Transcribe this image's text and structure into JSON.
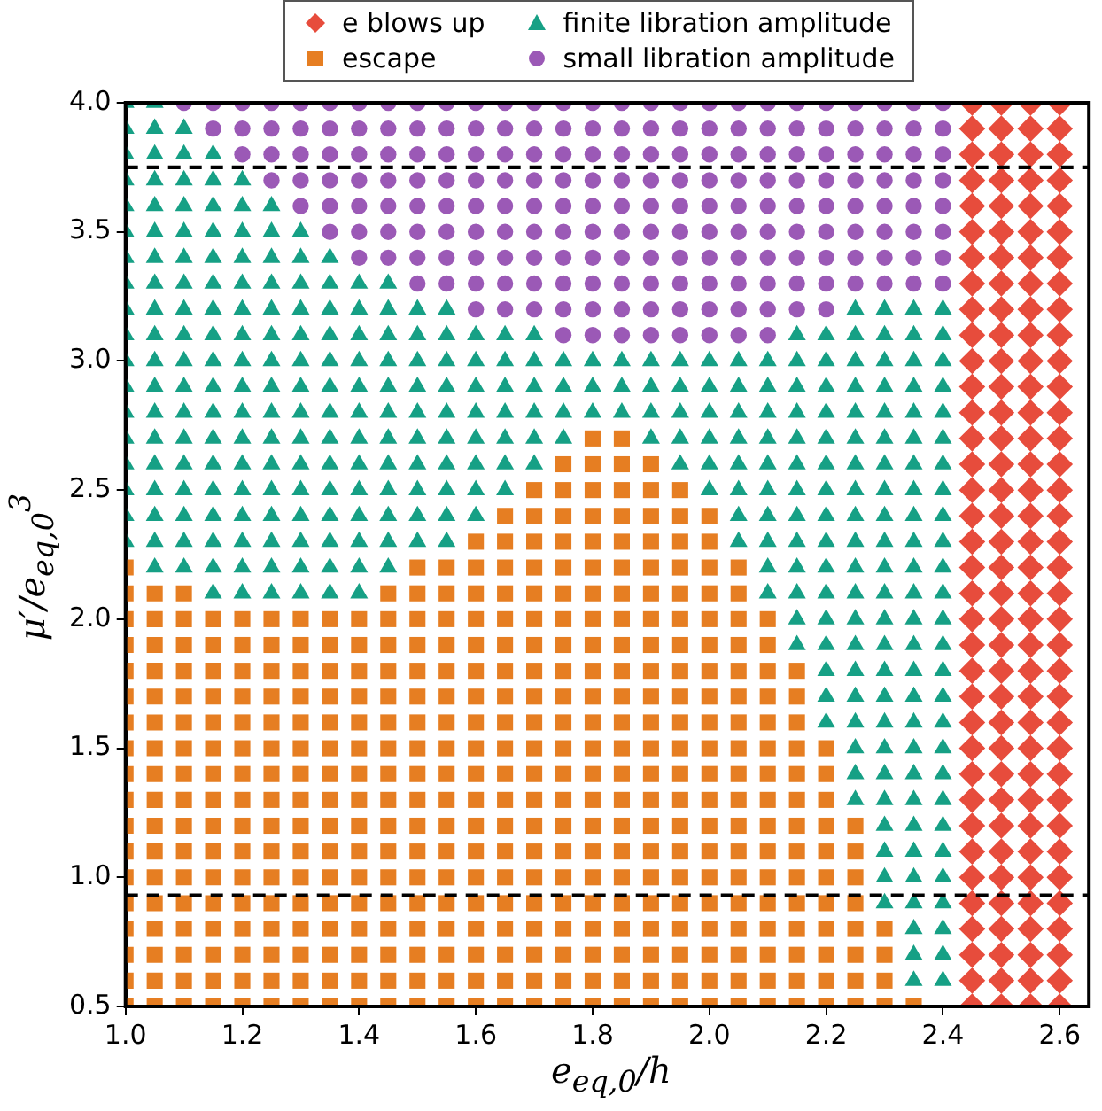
{
  "chart_data": {
    "type": "scatter",
    "xlabel": "e$_{eq,0}$/h",
    "ylabel": "μ′/e$_{eq,0}$$^{3}$",
    "xlim": [
      1.0,
      2.65
    ],
    "ylim": [
      0.5,
      4.0
    ],
    "xticks": [
      {
        "value": 1.0,
        "label": "1.0"
      },
      {
        "value": 1.2,
        "label": "1.2"
      },
      {
        "value": 1.4,
        "label": "1.4"
      },
      {
        "value": 1.6,
        "label": "1.6"
      },
      {
        "value": 1.8,
        "label": "1.8"
      },
      {
        "value": 2.0,
        "label": "2.0"
      },
      {
        "value": 2.2,
        "label": "2.2"
      },
      {
        "value": 2.4,
        "label": "2.4"
      },
      {
        "value": 2.6,
        "label": "2.6"
      }
    ],
    "yticks": [
      {
        "value": 0.5,
        "label": "0.5"
      },
      {
        "value": 1.0,
        "label": "1.0"
      },
      {
        "value": 1.5,
        "label": "1.5"
      },
      {
        "value": 2.0,
        "label": "2.0"
      },
      {
        "value": 2.5,
        "label": "2.5"
      },
      {
        "value": 3.0,
        "label": "3.0"
      },
      {
        "value": 3.5,
        "label": "3.5"
      },
      {
        "value": 4.0,
        "label": "4.0"
      }
    ],
    "grid": false,
    "legend": "top",
    "ref_lines": [
      {
        "axis": "y",
        "value": 3.75,
        "color": "#000000",
        "line_style": "dashed"
      },
      {
        "axis": "y",
        "value": 0.93,
        "color": "#000000",
        "line_style": "dashed"
      }
    ],
    "series": [
      {
        "name": "e blows up",
        "color": "#e74c3c",
        "marker": "diamond",
        "x": [
          2.45,
          2.5,
          2.55,
          2.6,
          2.45,
          2.5,
          2.55,
          2.6,
          2.45,
          2.5,
          2.55,
          2.6,
          2.45,
          2.5,
          2.55,
          2.6,
          2.45,
          2.5,
          2.55,
          2.6,
          2.45,
          2.5,
          2.55,
          2.6,
          2.45,
          2.5,
          2.55,
          2.6,
          2.45,
          2.5,
          2.55,
          2.6,
          2.45,
          2.5,
          2.55,
          2.6,
          2.45,
          2.5,
          2.55,
          2.6,
          2.45,
          2.5,
          2.55,
          2.6,
          2.45,
          2.5,
          2.55,
          2.6,
          2.45,
          2.5,
          2.55,
          2.6,
          2.45,
          2.5,
          2.55,
          2.6,
          2.45,
          2.5,
          2.55,
          2.6,
          2.45,
          2.5,
          2.55,
          2.6,
          2.45,
          2.5,
          2.55,
          2.6,
          2.45,
          2.5,
          2.55,
          2.6,
          2.45,
          2.5,
          2.55,
          2.6,
          2.45,
          2.5,
          2.55,
          2.6,
          2.45,
          2.5,
          2.55,
          2.6,
          2.45,
          2.5,
          2.55,
          2.6,
          2.45,
          2.5,
          2.55,
          2.6,
          2.45,
          2.5,
          2.55,
          2.6,
          2.45,
          2.5,
          2.55,
          2.6,
          2.45,
          2.5,
          2.55,
          2.6,
          2.45,
          2.5,
          2.55,
          2.6,
          2.45,
          2.5,
          2.55,
          2.6,
          2.45,
          2.5,
          2.55,
          2.6,
          2.45,
          2.5,
          2.55,
          2.6,
          2.45,
          2.5,
          2.55,
          2.6,
          2.45,
          2.5,
          2.55,
          2.6,
          2.45,
          2.5,
          2.55,
          2.6,
          2.45,
          2.5,
          2.55,
          2.6,
          2.45,
          2.5,
          2.55,
          2.6,
          2.45,
          2.5,
          2.55,
          2.6
        ],
        "values": [
          0.5,
          0.5,
          0.5,
          0.5,
          0.6,
          0.6,
          0.6,
          0.6,
          0.7,
          0.7,
          0.7,
          0.7,
          0.8,
          0.8,
          0.8,
          0.8,
          0.9,
          0.9,
          0.9,
          0.9,
          1,
          1,
          1,
          1,
          1.1,
          1.1,
          1.1,
          1.1,
          1.2,
          1.2,
          1.2,
          1.2,
          1.3,
          1.3,
          1.3,
          1.3,
          1.4,
          1.4,
          1.4,
          1.4,
          1.5,
          1.5,
          1.5,
          1.5,
          1.6,
          1.6,
          1.6,
          1.6,
          1.7,
          1.7,
          1.7,
          1.7,
          1.8,
          1.8,
          1.8,
          1.8,
          1.9,
          1.9,
          1.9,
          1.9,
          2,
          2,
          2,
          2,
          2.1,
          2.1,
          2.1,
          2.1,
          2.2,
          2.2,
          2.2,
          2.2,
          2.3,
          2.3,
          2.3,
          2.3,
          2.4,
          2.4,
          2.4,
          2.4,
          2.5,
          2.5,
          2.5,
          2.5,
          2.6,
          2.6,
          2.6,
          2.6,
          2.7,
          2.7,
          2.7,
          2.7,
          2.8,
          2.8,
          2.8,
          2.8,
          2.9,
          2.9,
          2.9,
          2.9,
          3,
          3,
          3,
          3,
          3.1,
          3.1,
          3.1,
          3.1,
          3.2,
          3.2,
          3.2,
          3.2,
          3.3,
          3.3,
          3.3,
          3.3,
          3.4,
          3.4,
          3.4,
          3.4,
          3.5,
          3.5,
          3.5,
          3.5,
          3.6,
          3.6,
          3.6,
          3.6,
          3.7,
          3.7,
          3.7,
          3.7,
          3.8,
          3.8,
          3.8,
          3.8,
          3.9,
          3.9,
          3.9,
          3.9,
          4,
          4,
          4,
          4
        ]
      },
      {
        "name": "escape",
        "color": "#e67e22",
        "marker": "square",
        "x": [
          1,
          1.05,
          1.1,
          1.15,
          1.2,
          1.25,
          1.3,
          1.35,
          1.4,
          1.45,
          1.5,
          1.55,
          1.6,
          1.65,
          1.7,
          1.75,
          1.8,
          1.85,
          1.9,
          1.95,
          2,
          2.05,
          2.1,
          2.15,
          2.2,
          2.25,
          2.3,
          2.35,
          1,
          1.05,
          1.1,
          1.15,
          1.2,
          1.25,
          1.3,
          1.35,
          1.4,
          1.45,
          1.5,
          1.55,
          1.6,
          1.65,
          1.7,
          1.75,
          1.8,
          1.85,
          1.9,
          1.95,
          2,
          2.05,
          2.1,
          2.15,
          2.2,
          2.25,
          2.3,
          1,
          1.05,
          1.1,
          1.15,
          1.2,
          1.25,
          1.3,
          1.35,
          1.4,
          1.45,
          1.5,
          1.55,
          1.6,
          1.65,
          1.7,
          1.75,
          1.8,
          1.85,
          1.9,
          1.95,
          2,
          2.05,
          2.1,
          2.15,
          2.2,
          2.25,
          2.3,
          1,
          1.05,
          1.1,
          1.15,
          1.2,
          1.25,
          1.3,
          1.35,
          1.4,
          1.45,
          1.5,
          1.55,
          1.6,
          1.65,
          1.7,
          1.75,
          1.8,
          1.85,
          1.9,
          1.95,
          2,
          2.05,
          2.1,
          2.15,
          2.2,
          2.25,
          2.3,
          1,
          1.05,
          1.1,
          1.15,
          1.2,
          1.25,
          1.3,
          1.35,
          1.4,
          1.45,
          1.5,
          1.55,
          1.6,
          1.65,
          1.7,
          1.75,
          1.8,
          1.85,
          1.9,
          1.95,
          2,
          2.05,
          2.1,
          2.15,
          2.2,
          2.25,
          1,
          1.05,
          1.1,
          1.15,
          1.2,
          1.25,
          1.3,
          1.35,
          1.4,
          1.45,
          1.5,
          1.55,
          1.6,
          1.65,
          1.7,
          1.75,
          1.8,
          1.85,
          1.9,
          1.95,
          2,
          2.05,
          2.1,
          2.15,
          2.2,
          2.25,
          1,
          1.05,
          1.1,
          1.15,
          1.2,
          1.25,
          1.3,
          1.35,
          1.4,
          1.45,
          1.5,
          1.55,
          1.6,
          1.65,
          1.7,
          1.75,
          1.8,
          1.85,
          1.9,
          1.95,
          2,
          2.05,
          2.1,
          2.15,
          2.2,
          2.25,
          1,
          1.05,
          1.1,
          1.15,
          1.2,
          1.25,
          1.3,
          1.35,
          1.4,
          1.45,
          1.5,
          1.55,
          1.6,
          1.65,
          1.7,
          1.75,
          1.8,
          1.85,
          1.9,
          1.95,
          2,
          2.05,
          2.1,
          2.15,
          2.2,
          2.25,
          1,
          1.05,
          1.1,
          1.15,
          1.2,
          1.25,
          1.3,
          1.35,
          1.4,
          1.45,
          1.5,
          1.55,
          1.6,
          1.65,
          1.7,
          1.75,
          1.8,
          1.85,
          1.9,
          1.95,
          2,
          2.05,
          2.1,
          2.15,
          2.2,
          1,
          1.05,
          1.1,
          1.15,
          1.2,
          1.25,
          1.3,
          1.35,
          1.4,
          1.45,
          1.5,
          1.55,
          1.6,
          1.65,
          1.7,
          1.75,
          1.8,
          1.85,
          1.9,
          1.95,
          2,
          2.05,
          2.1,
          2.15,
          2.2,
          1,
          1.05,
          1.1,
          1.15,
          1.2,
          1.25,
          1.3,
          1.35,
          1.4,
          1.45,
          1.5,
          1.55,
          1.6,
          1.65,
          1.7,
          1.75,
          1.8,
          1.85,
          1.9,
          1.95,
          2,
          2.05,
          2.1,
          2.15,
          2.2,
          1,
          1.05,
          1.1,
          1.15,
          1.2,
          1.25,
          1.3,
          1.35,
          1.4,
          1.45,
          1.5,
          1.55,
          1.6,
          1.65,
          1.7,
          1.75,
          1.8,
          1.85,
          1.9,
          1.95,
          2,
          2.05,
          2.1,
          2.15,
          1,
          1.05,
          1.1,
          1.15,
          1.2,
          1.25,
          1.3,
          1.35,
          1.4,
          1.45,
          1.5,
          1.55,
          1.6,
          1.65,
          1.7,
          1.75,
          1.8,
          1.85,
          1.9,
          1.95,
          2,
          2.05,
          2.1,
          2.15,
          1,
          1.05,
          1.1,
          1.15,
          1.2,
          1.25,
          1.3,
          1.35,
          1.4,
          1.45,
          1.5,
          1.55,
          1.6,
          1.65,
          1.7,
          1.75,
          1.8,
          1.85,
          1.9,
          1.95,
          2,
          2.05,
          2.1,
          2.15,
          1,
          1.05,
          1.1,
          1.15,
          1.2,
          1.25,
          1.3,
          1.35,
          1.4,
          1.45,
          1.5,
          1.55,
          1.6,
          1.65,
          1.7,
          1.75,
          1.8,
          1.85,
          1.9,
          1.95,
          2,
          2.05,
          2.1,
          1,
          1.05,
          1.1,
          1.15,
          1.2,
          1.25,
          1.3,
          1.35,
          1.4,
          1.45,
          1.5,
          1.55,
          1.6,
          1.65,
          1.7,
          1.75,
          1.8,
          1.85,
          1.9,
          1.95,
          2,
          2.05,
          2.1,
          1,
          1.05,
          1.1,
          1.45,
          1.5,
          1.55,
          1.6,
          1.65,
          1.7,
          1.75,
          1.8,
          1.85,
          1.9,
          1.95,
          2,
          2.05,
          1,
          1.5,
          1.55,
          1.6,
          1.65,
          1.7,
          1.75,
          1.8,
          1.85,
          1.9,
          1.95,
          2,
          2.05,
          1.6,
          1.65,
          1.7,
          1.75,
          1.8,
          1.85,
          1.9,
          1.95,
          2,
          1.65,
          1.7,
          1.75,
          1.8,
          1.85,
          1.9,
          1.95,
          2,
          1.7,
          1.75,
          1.8,
          1.85,
          1.9,
          1.95,
          1.75,
          1.8,
          1.85,
          1.9,
          1.8,
          1.85
        ],
        "values": [
          0.5,
          0.5,
          0.5,
          0.5,
          0.5,
          0.5,
          0.5,
          0.5,
          0.5,
          0.5,
          0.5,
          0.5,
          0.5,
          0.5,
          0.5,
          0.5,
          0.5,
          0.5,
          0.5,
          0.5,
          0.5,
          0.5,
          0.5,
          0.5,
          0.5,
          0.5,
          0.5,
          0.5,
          0.6,
          0.6,
          0.6,
          0.6,
          0.6,
          0.6,
          0.6,
          0.6,
          0.6,
          0.6,
          0.6,
          0.6,
          0.6,
          0.6,
          0.6,
          0.6,
          0.6,
          0.6,
          0.6,
          0.6,
          0.6,
          0.6,
          0.6,
          0.6,
          0.6,
          0.6,
          0.6,
          0.7,
          0.7,
          0.7,
          0.7,
          0.7,
          0.7,
          0.7,
          0.7,
          0.7,
          0.7,
          0.7,
          0.7,
          0.7,
          0.7,
          0.7,
          0.7,
          0.7,
          0.7,
          0.7,
          0.7,
          0.7,
          0.7,
          0.7,
          0.7,
          0.7,
          0.7,
          0.7,
          0.8,
          0.8,
          0.8,
          0.8,
          0.8,
          0.8,
          0.8,
          0.8,
          0.8,
          0.8,
          0.8,
          0.8,
          0.8,
          0.8,
          0.8,
          0.8,
          0.8,
          0.8,
          0.8,
          0.8,
          0.8,
          0.8,
          0.8,
          0.8,
          0.8,
          0.8,
          0.8,
          0.9,
          0.9,
          0.9,
          0.9,
          0.9,
          0.9,
          0.9,
          0.9,
          0.9,
          0.9,
          0.9,
          0.9,
          0.9,
          0.9,
          0.9,
          0.9,
          0.9,
          0.9,
          0.9,
          0.9,
          0.9,
          0.9,
          0.9,
          0.9,
          0.9,
          0.9,
          1,
          1,
          1,
          1,
          1,
          1,
          1,
          1,
          1,
          1,
          1,
          1,
          1,
          1,
          1,
          1,
          1,
          1,
          1,
          1,
          1,
          1,
          1,
          1,
          1,
          1,
          1.1,
          1.1,
          1.1,
          1.1,
          1.1,
          1.1,
          1.1,
          1.1,
          1.1,
          1.1,
          1.1,
          1.1,
          1.1,
          1.1,
          1.1,
          1.1,
          1.1,
          1.1,
          1.1,
          1.1,
          1.1,
          1.1,
          1.1,
          1.1,
          1.1,
          1.1,
          1.2,
          1.2,
          1.2,
          1.2,
          1.2,
          1.2,
          1.2,
          1.2,
          1.2,
          1.2,
          1.2,
          1.2,
          1.2,
          1.2,
          1.2,
          1.2,
          1.2,
          1.2,
          1.2,
          1.2,
          1.2,
          1.2,
          1.2,
          1.2,
          1.2,
          1.2,
          1.3,
          1.3,
          1.3,
          1.3,
          1.3,
          1.3,
          1.3,
          1.3,
          1.3,
          1.3,
          1.3,
          1.3,
          1.3,
          1.3,
          1.3,
          1.3,
          1.3,
          1.3,
          1.3,
          1.3,
          1.3,
          1.3,
          1.3,
          1.3,
          1.3,
          1.4,
          1.4,
          1.4,
          1.4,
          1.4,
          1.4,
          1.4,
          1.4,
          1.4,
          1.4,
          1.4,
          1.4,
          1.4,
          1.4,
          1.4,
          1.4,
          1.4,
          1.4,
          1.4,
          1.4,
          1.4,
          1.4,
          1.4,
          1.4,
          1.4,
          1.5,
          1.5,
          1.5,
          1.5,
          1.5,
          1.5,
          1.5,
          1.5,
          1.5,
          1.5,
          1.5,
          1.5,
          1.5,
          1.5,
          1.5,
          1.5,
          1.5,
          1.5,
          1.5,
          1.5,
          1.5,
          1.5,
          1.5,
          1.5,
          1.5,
          1.6,
          1.6,
          1.6,
          1.6,
          1.6,
          1.6,
          1.6,
          1.6,
          1.6,
          1.6,
          1.6,
          1.6,
          1.6,
          1.6,
          1.6,
          1.6,
          1.6,
          1.6,
          1.6,
          1.6,
          1.6,
          1.6,
          1.6,
          1.6,
          1.7,
          1.7,
          1.7,
          1.7,
          1.7,
          1.7,
          1.7,
          1.7,
          1.7,
          1.7,
          1.7,
          1.7,
          1.7,
          1.7,
          1.7,
          1.7,
          1.7,
          1.7,
          1.7,
          1.7,
          1.7,
          1.7,
          1.7,
          1.7,
          1.8,
          1.8,
          1.8,
          1.8,
          1.8,
          1.8,
          1.8,
          1.8,
          1.8,
          1.8,
          1.8,
          1.8,
          1.8,
          1.8,
          1.8,
          1.8,
          1.8,
          1.8,
          1.8,
          1.8,
          1.8,
          1.8,
          1.8,
          1.8,
          1.9,
          1.9,
          1.9,
          1.9,
          1.9,
          1.9,
          1.9,
          1.9,
          1.9,
          1.9,
          1.9,
          1.9,
          1.9,
          1.9,
          1.9,
          1.9,
          1.9,
          1.9,
          1.9,
          1.9,
          1.9,
          1.9,
          1.9,
          2,
          2,
          2,
          2,
          2,
          2,
          2,
          2,
          2,
          2,
          2,
          2,
          2,
          2,
          2,
          2,
          2,
          2,
          2,
          2,
          2,
          2,
          2,
          2.1,
          2.1,
          2.1,
          2.1,
          2.1,
          2.1,
          2.1,
          2.1,
          2.1,
          2.1,
          2.1,
          2.1,
          2.1,
          2.1,
          2.1,
          2.1,
          2.2,
          2.2,
          2.2,
          2.2,
          2.2,
          2.2,
          2.2,
          2.2,
          2.2,
          2.2,
          2.2,
          2.2,
          2.2,
          2.3,
          2.3,
          2.3,
          2.3,
          2.3,
          2.3,
          2.3,
          2.3,
          2.3,
          2.4,
          2.4,
          2.4,
          2.4,
          2.4,
          2.4,
          2.4,
          2.4,
          2.5,
          2.5,
          2.5,
          2.5,
          2.5,
          2.5,
          2.6,
          2.6,
          2.6,
          2.6,
          2.7,
          2.7
        ]
      },
      {
        "name": "finite libration amplitude",
        "color": "#16a085",
        "marker": "triangle",
        "x": [
          2.35,
          2.4,
          2.35,
          2.4,
          2.35,
          2.4,
          2.3,
          2.35,
          2.4,
          2.3,
          2.35,
          2.4,
          2.3,
          2.35,
          2.4,
          2.3,
          2.35,
          2.4,
          2.25,
          2.3,
          2.35,
          2.4,
          2.25,
          2.3,
          2.35,
          2.4,
          2.25,
          2.3,
          2.35,
          2.4,
          2.2,
          2.25,
          2.3,
          2.35,
          2.4,
          2.2,
          2.25,
          2.3,
          2.35,
          2.4,
          2.2,
          2.25,
          2.3,
          2.35,
          2.4,
          2.15,
          2.2,
          2.25,
          2.3,
          2.35,
          2.4,
          2.15,
          2.2,
          2.25,
          2.3,
          2.35,
          2.4,
          1.15,
          1.2,
          1.25,
          1.3,
          1.35,
          1.4,
          2.1,
          2.15,
          2.2,
          2.25,
          2.3,
          2.35,
          2.4,
          1.05,
          1.1,
          1.15,
          1.2,
          1.25,
          1.3,
          1.35,
          1.4,
          1.45,
          2.1,
          2.15,
          2.2,
          2.25,
          2.3,
          2.35,
          2.4,
          1,
          1.05,
          1.1,
          1.15,
          1.2,
          1.25,
          1.3,
          1.35,
          1.4,
          1.45,
          1.5,
          1.55,
          2.05,
          2.1,
          2.15,
          2.2,
          2.25,
          2.3,
          2.35,
          2.4,
          1,
          1.05,
          1.1,
          1.15,
          1.2,
          1.25,
          1.3,
          1.35,
          1.4,
          1.45,
          1.5,
          1.55,
          1.6,
          2.05,
          2.1,
          2.15,
          2.2,
          2.25,
          2.3,
          2.35,
          2.4,
          1,
          1.05,
          1.1,
          1.15,
          1.2,
          1.25,
          1.3,
          1.35,
          1.4,
          1.45,
          1.5,
          1.55,
          1.6,
          1.65,
          2,
          2.05,
          2.1,
          2.15,
          2.2,
          2.25,
          2.3,
          2.35,
          2.4,
          1,
          1.05,
          1.1,
          1.15,
          1.2,
          1.25,
          1.3,
          1.35,
          1.4,
          1.45,
          1.5,
          1.55,
          1.6,
          1.65,
          1.7,
          1.95,
          2,
          2.05,
          2.1,
          2.15,
          2.2,
          2.25,
          2.3,
          2.35,
          2.4,
          1,
          1.05,
          1.1,
          1.15,
          1.2,
          1.25,
          1.3,
          1.35,
          1.4,
          1.45,
          1.5,
          1.55,
          1.6,
          1.65,
          1.7,
          1.75,
          1.9,
          1.95,
          2,
          2.05,
          2.1,
          2.15,
          2.2,
          2.25,
          2.3,
          2.35,
          2.4,
          1,
          1.05,
          1.1,
          1.15,
          1.2,
          1.25,
          1.3,
          1.35,
          1.4,
          1.45,
          1.5,
          1.55,
          1.6,
          1.65,
          1.7,
          1.75,
          1.8,
          1.85,
          1.9,
          1.95,
          2,
          2.05,
          2.1,
          2.15,
          2.2,
          2.25,
          2.3,
          2.35,
          2.4,
          1,
          1.05,
          1.1,
          1.15,
          1.2,
          1.25,
          1.3,
          1.35,
          1.4,
          1.45,
          1.5,
          1.55,
          1.6,
          1.65,
          1.7,
          1.75,
          1.8,
          1.85,
          1.9,
          1.95,
          2,
          2.05,
          2.1,
          2.15,
          2.2,
          2.25,
          2.3,
          2.35,
          2.4,
          1,
          1.05,
          1.1,
          1.15,
          1.2,
          1.25,
          1.3,
          1.35,
          1.4,
          1.45,
          1.5,
          1.55,
          1.6,
          1.65,
          1.7,
          1.75,
          1.8,
          1.85,
          1.9,
          1.95,
          2,
          2.05,
          2.1,
          2.15,
          2.2,
          2.25,
          2.3,
          2.35,
          2.4,
          1,
          1.05,
          1.1,
          1.15,
          1.2,
          1.25,
          1.3,
          1.35,
          1.4,
          1.45,
          1.5,
          1.55,
          1.6,
          1.65,
          1.7,
          2.15,
          2.2,
          2.25,
          2.3,
          2.35,
          2.4,
          1,
          1.05,
          1.1,
          1.15,
          1.2,
          1.25,
          1.3,
          1.35,
          1.4,
          1.45,
          1.5,
          1.55,
          2.25,
          2.3,
          2.35,
          2.4,
          1,
          1.05,
          1.1,
          1.15,
          1.2,
          1.25,
          1.3,
          1.35,
          1.4,
          1.45,
          1,
          1.05,
          1.1,
          1.15,
          1.2,
          1.25,
          1.3,
          1.35,
          1,
          1.05,
          1.1,
          1.15,
          1.2,
          1.25,
          1.3,
          1,
          1.05,
          1.1,
          1.15,
          1.2,
          1.25,
          1,
          1.05,
          1.1,
          1.15,
          1.2,
          1,
          1.05,
          1.1,
          1.15,
          1,
          1.05,
          1.1,
          1,
          1.05
        ],
        "values": [
          0.6,
          0.6,
          0.7,
          0.7,
          0.8,
          0.8,
          0.9,
          0.9,
          0.9,
          1,
          1,
          1,
          1.1,
          1.1,
          1.1,
          1.2,
          1.2,
          1.2,
          1.3,
          1.3,
          1.3,
          1.3,
          1.4,
          1.4,
          1.4,
          1.4,
          1.5,
          1.5,
          1.5,
          1.5,
          1.6,
          1.6,
          1.6,
          1.6,
          1.6,
          1.7,
          1.7,
          1.7,
          1.7,
          1.7,
          1.8,
          1.8,
          1.8,
          1.8,
          1.8,
          1.9,
          1.9,
          1.9,
          1.9,
          1.9,
          1.9,
          2,
          2,
          2,
          2,
          2,
          2,
          2.1,
          2.1,
          2.1,
          2.1,
          2.1,
          2.1,
          2.1,
          2.1,
          2.1,
          2.1,
          2.1,
          2.1,
          2.1,
          2.2,
          2.2,
          2.2,
          2.2,
          2.2,
          2.2,
          2.2,
          2.2,
          2.2,
          2.2,
          2.2,
          2.2,
          2.2,
          2.2,
          2.2,
          2.2,
          2.3,
          2.3,
          2.3,
          2.3,
          2.3,
          2.3,
          2.3,
          2.3,
          2.3,
          2.3,
          2.3,
          2.3,
          2.3,
          2.3,
          2.3,
          2.3,
          2.3,
          2.3,
          2.3,
          2.3,
          2.4,
          2.4,
          2.4,
          2.4,
          2.4,
          2.4,
          2.4,
          2.4,
          2.4,
          2.4,
          2.4,
          2.4,
          2.4,
          2.4,
          2.4,
          2.4,
          2.4,
          2.4,
          2.4,
          2.4,
          2.4,
          2.5,
          2.5,
          2.5,
          2.5,
          2.5,
          2.5,
          2.5,
          2.5,
          2.5,
          2.5,
          2.5,
          2.5,
          2.5,
          2.5,
          2.5,
          2.5,
          2.5,
          2.5,
          2.5,
          2.5,
          2.5,
          2.5,
          2.5,
          2.6,
          2.6,
          2.6,
          2.6,
          2.6,
          2.6,
          2.6,
          2.6,
          2.6,
          2.6,
          2.6,
          2.6,
          2.6,
          2.6,
          2.6,
          2.6,
          2.6,
          2.6,
          2.6,
          2.6,
          2.6,
          2.6,
          2.6,
          2.6,
          2.6,
          2.7,
          2.7,
          2.7,
          2.7,
          2.7,
          2.7,
          2.7,
          2.7,
          2.7,
          2.7,
          2.7,
          2.7,
          2.7,
          2.7,
          2.7,
          2.7,
          2.7,
          2.7,
          2.7,
          2.7,
          2.7,
          2.7,
          2.7,
          2.7,
          2.7,
          2.7,
          2.7,
          2.8,
          2.8,
          2.8,
          2.8,
          2.8,
          2.8,
          2.8,
          2.8,
          2.8,
          2.8,
          2.8,
          2.8,
          2.8,
          2.8,
          2.8,
          2.8,
          2.8,
          2.8,
          2.8,
          2.8,
          2.8,
          2.8,
          2.8,
          2.8,
          2.8,
          2.8,
          2.8,
          2.8,
          2.8,
          2.9,
          2.9,
          2.9,
          2.9,
          2.9,
          2.9,
          2.9,
          2.9,
          2.9,
          2.9,
          2.9,
          2.9,
          2.9,
          2.9,
          2.9,
          2.9,
          2.9,
          2.9,
          2.9,
          2.9,
          2.9,
          2.9,
          2.9,
          2.9,
          2.9,
          2.9,
          2.9,
          2.9,
          2.9,
          3,
          3,
          3,
          3,
          3,
          3,
          3,
          3,
          3,
          3,
          3,
          3,
          3,
          3,
          3,
          3,
          3,
          3,
          3,
          3,
          3,
          3,
          3,
          3,
          3,
          3,
          3,
          3,
          3,
          3.1,
          3.1,
          3.1,
          3.1,
          3.1,
          3.1,
          3.1,
          3.1,
          3.1,
          3.1,
          3.1,
          3.1,
          3.1,
          3.1,
          3.1,
          3.1,
          3.1,
          3.1,
          3.1,
          3.1,
          3.1,
          3.2,
          3.2,
          3.2,
          3.2,
          3.2,
          3.2,
          3.2,
          3.2,
          3.2,
          3.2,
          3.2,
          3.2,
          3.2,
          3.2,
          3.2,
          3.2,
          3.3,
          3.3,
          3.3,
          3.3,
          3.3,
          3.3,
          3.3,
          3.3,
          3.3,
          3.3,
          3.4,
          3.4,
          3.4,
          3.4,
          3.4,
          3.4,
          3.4,
          3.4,
          3.5,
          3.5,
          3.5,
          3.5,
          3.5,
          3.5,
          3.5,
          3.6,
          3.6,
          3.6,
          3.6,
          3.6,
          3.6,
          3.7,
          3.7,
          3.7,
          3.7,
          3.7,
          3.8,
          3.8,
          3.8,
          3.8,
          3.9,
          3.9,
          3.9,
          4,
          4
        ]
      },
      {
        "name": "small libration amplitude",
        "color": "#9b59b6",
        "marker": "circle",
        "x": [
          1.75,
          1.8,
          1.85,
          1.9,
          1.95,
          2,
          2.05,
          2.1,
          1.6,
          1.65,
          1.7,
          1.75,
          1.8,
          1.85,
          1.9,
          1.95,
          2,
          2.05,
          2.1,
          2.15,
          2.2,
          1.5,
          1.55,
          1.6,
          1.65,
          1.7,
          1.75,
          1.8,
          1.85,
          1.9,
          1.95,
          2,
          2.05,
          2.1,
          2.15,
          2.2,
          2.25,
          2.3,
          2.35,
          2.4,
          1.4,
          1.45,
          1.5,
          1.55,
          1.6,
          1.65,
          1.7,
          1.75,
          1.8,
          1.85,
          1.9,
          1.95,
          2,
          2.05,
          2.1,
          2.15,
          2.2,
          2.25,
          2.3,
          2.35,
          2.4,
          1.35,
          1.4,
          1.45,
          1.5,
          1.55,
          1.6,
          1.65,
          1.7,
          1.75,
          1.8,
          1.85,
          1.9,
          1.95,
          2,
          2.05,
          2.1,
          2.15,
          2.2,
          2.25,
          2.3,
          2.35,
          2.4,
          1.3,
          1.35,
          1.4,
          1.45,
          1.5,
          1.55,
          1.6,
          1.65,
          1.7,
          1.75,
          1.8,
          1.85,
          1.9,
          1.95,
          2,
          2.05,
          2.1,
          2.15,
          2.2,
          2.25,
          2.3,
          2.35,
          2.4,
          1.25,
          1.3,
          1.35,
          1.4,
          1.45,
          1.5,
          1.55,
          1.6,
          1.65,
          1.7,
          1.75,
          1.8,
          1.85,
          1.9,
          1.95,
          2,
          2.05,
          2.1,
          2.15,
          2.2,
          2.25,
          2.3,
          2.35,
          2.4,
          1.2,
          1.25,
          1.3,
          1.35,
          1.4,
          1.45,
          1.5,
          1.55,
          1.6,
          1.65,
          1.7,
          1.75,
          1.8,
          1.85,
          1.9,
          1.95,
          2,
          2.05,
          2.1,
          2.15,
          2.2,
          2.25,
          2.3,
          2.35,
          2.4,
          1.15,
          1.2,
          1.25,
          1.3,
          1.35,
          1.4,
          1.45,
          1.5,
          1.55,
          1.6,
          1.65,
          1.7,
          1.75,
          1.8,
          1.85,
          1.9,
          1.95,
          2,
          2.05,
          2.1,
          2.15,
          2.2,
          2.25,
          2.3,
          2.35,
          2.4,
          1.1,
          1.15,
          1.2,
          1.25,
          1.3,
          1.35,
          1.4,
          1.45,
          1.5,
          1.55,
          1.6,
          1.65,
          1.7,
          1.75,
          1.8,
          1.85,
          1.9,
          1.95,
          2,
          2.05,
          2.1,
          2.15,
          2.2,
          2.25,
          2.3,
          2.35,
          2.4
        ],
        "values": [
          3.1,
          3.1,
          3.1,
          3.1,
          3.1,
          3.1,
          3.1,
          3.1,
          3.2,
          3.2,
          3.2,
          3.2,
          3.2,
          3.2,
          3.2,
          3.2,
          3.2,
          3.2,
          3.2,
          3.2,
          3.2,
          3.3,
          3.3,
          3.3,
          3.3,
          3.3,
          3.3,
          3.3,
          3.3,
          3.3,
          3.3,
          3.3,
          3.3,
          3.3,
          3.3,
          3.3,
          3.3,
          3.3,
          3.3,
          3.3,
          3.4,
          3.4,
          3.4,
          3.4,
          3.4,
          3.4,
          3.4,
          3.4,
          3.4,
          3.4,
          3.4,
          3.4,
          3.4,
          3.4,
          3.4,
          3.4,
          3.4,
          3.4,
          3.4,
          3.4,
          3.4,
          3.5,
          3.5,
          3.5,
          3.5,
          3.5,
          3.5,
          3.5,
          3.5,
          3.5,
          3.5,
          3.5,
          3.5,
          3.5,
          3.5,
          3.5,
          3.5,
          3.5,
          3.5,
          3.5,
          3.5,
          3.5,
          3.5,
          3.6,
          3.6,
          3.6,
          3.6,
          3.6,
          3.6,
          3.6,
          3.6,
          3.6,
          3.6,
          3.6,
          3.6,
          3.6,
          3.6,
          3.6,
          3.6,
          3.6,
          3.6,
          3.6,
          3.6,
          3.6,
          3.6,
          3.6,
          3.7,
          3.7,
          3.7,
          3.7,
          3.7,
          3.7,
          3.7,
          3.7,
          3.7,
          3.7,
          3.7,
          3.7,
          3.7,
          3.7,
          3.7,
          3.7,
          3.7,
          3.7,
          3.7,
          3.7,
          3.7,
          3.7,
          3.7,
          3.7,
          3.8,
          3.8,
          3.8,
          3.8,
          3.8,
          3.8,
          3.8,
          3.8,
          3.8,
          3.8,
          3.8,
          3.8,
          3.8,
          3.8,
          3.8,
          3.8,
          3.8,
          3.8,
          3.8,
          3.8,
          3.8,
          3.8,
          3.8,
          3.8,
          3.8,
          3.9,
          3.9,
          3.9,
          3.9,
          3.9,
          3.9,
          3.9,
          3.9,
          3.9,
          3.9,
          3.9,
          3.9,
          3.9,
          3.9,
          3.9,
          3.9,
          3.9,
          3.9,
          3.9,
          3.9,
          3.9,
          3.9,
          3.9,
          3.9,
          3.9,
          3.9,
          4,
          4,
          4,
          4,
          4,
          4,
          4,
          4,
          4,
          4,
          4,
          4,
          4,
          4,
          4,
          4,
          4,
          4,
          4,
          4,
          4,
          4,
          4,
          4,
          4,
          4,
          4
        ]
      }
    ]
  }
}
